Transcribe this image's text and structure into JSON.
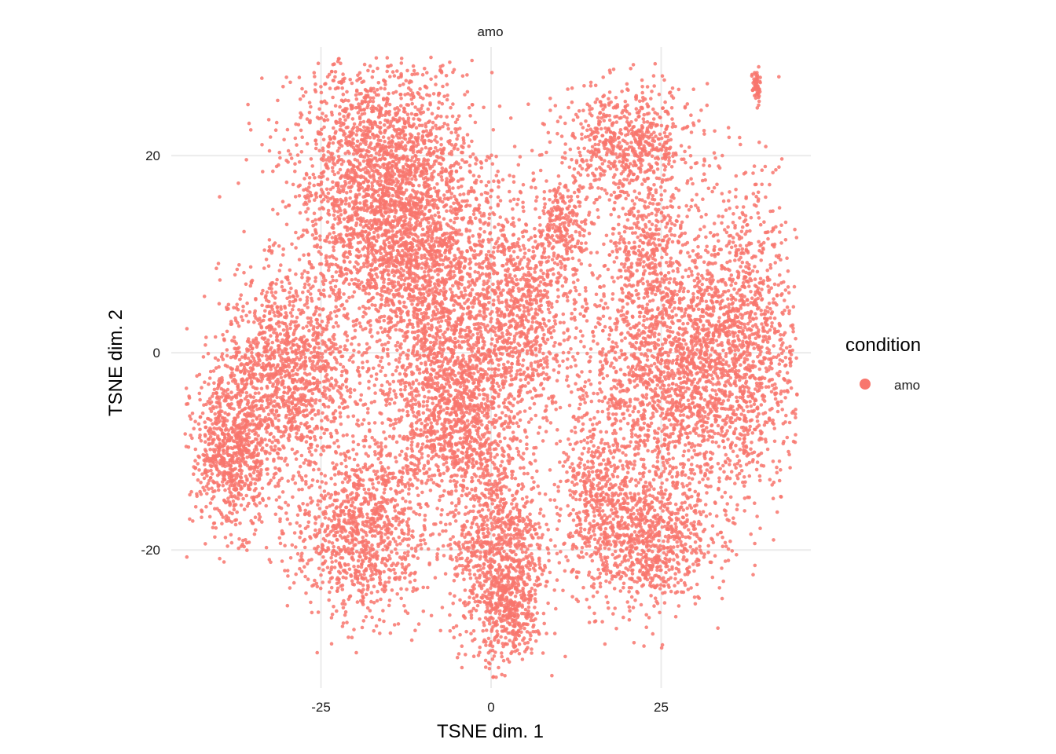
{
  "chart_data": {
    "type": "scatter",
    "facet_title": "amo",
    "xlabel": "TSNE dim. 1",
    "ylabel": "TSNE dim. 2",
    "xlim": [
      -47,
      47
    ],
    "ylim": [
      -34,
      31
    ],
    "x_ticks": [
      -25,
      0,
      25
    ],
    "x_tick_labels": [
      "-25",
      "0",
      "25"
    ],
    "y_ticks": [
      -20,
      0,
      20
    ],
    "y_tick_labels": [
      "-20",
      "0",
      "20"
    ],
    "grid": true,
    "legend": {
      "title": "condition",
      "position": "right",
      "entries": [
        {
          "label": "amo",
          "color": "#F8766D"
        }
      ]
    },
    "point_color": "#F8766D",
    "point_opacity": 0.85,
    "clusters": [
      {
        "name": "upper-left",
        "cx": -16,
        "cy": 18,
        "sx": 6.5,
        "sy": 6,
        "n": 2100
      },
      {
        "name": "upper-left-inner",
        "cx": -10,
        "cy": 9,
        "sx": 7,
        "sy": 5,
        "n": 1400
      },
      {
        "name": "left-mid",
        "cx": -30,
        "cy": -2,
        "sx": 5,
        "sy": 5,
        "n": 1300
      },
      {
        "name": "far-left",
        "cx": -38,
        "cy": -10,
        "sx": 3,
        "sy": 4,
        "n": 800
      },
      {
        "name": "center-mid",
        "cx": -5,
        "cy": -3,
        "sx": 6,
        "sy": 5,
        "n": 1300
      },
      {
        "name": "center-right",
        "cx": 5,
        "cy": 5,
        "sx": 3.5,
        "sy": 5,
        "n": 600
      },
      {
        "name": "lower-left",
        "cx": -19,
        "cy": -18,
        "sx": 5,
        "sy": 4.5,
        "n": 1100
      },
      {
        "name": "lower-center",
        "cx": 1,
        "cy": -20,
        "sx": 3.5,
        "sy": 5,
        "n": 1000
      },
      {
        "name": "lower-center-tail",
        "cx": 3,
        "cy": -27,
        "sx": 2,
        "sy": 2.5,
        "n": 250
      },
      {
        "name": "upper-right",
        "cx": 20,
        "cy": 21,
        "sx": 5,
        "sy": 3,
        "n": 700
      },
      {
        "name": "right-mid-small",
        "cx": 11,
        "cy": 13,
        "sx": 2,
        "sy": 2,
        "n": 220
      },
      {
        "name": "right-upper-arm",
        "cx": 23,
        "cy": 11,
        "sx": 2.5,
        "sy": 3,
        "n": 250
      },
      {
        "name": "right-large",
        "cx": 27,
        "cy": -2,
        "sx": 8,
        "sy": 7,
        "n": 2300
      },
      {
        "name": "right-far",
        "cx": 37,
        "cy": 2,
        "sx": 4,
        "sy": 8,
        "n": 800
      },
      {
        "name": "right-lower",
        "cx": 22,
        "cy": -19,
        "sx": 5,
        "sy": 3.5,
        "n": 900
      },
      {
        "name": "lower-mid-right",
        "cx": 15,
        "cy": -14,
        "sx": 2.5,
        "sy": 3,
        "n": 250
      },
      {
        "name": "center-lower-arm",
        "cx": -5,
        "cy": -9,
        "sx": 4,
        "sy": 3,
        "n": 350
      },
      {
        "name": "far-top-right",
        "cx": 39,
        "cy": 27,
        "sx": 0.3,
        "sy": 0.9,
        "n": 60
      }
    ]
  }
}
